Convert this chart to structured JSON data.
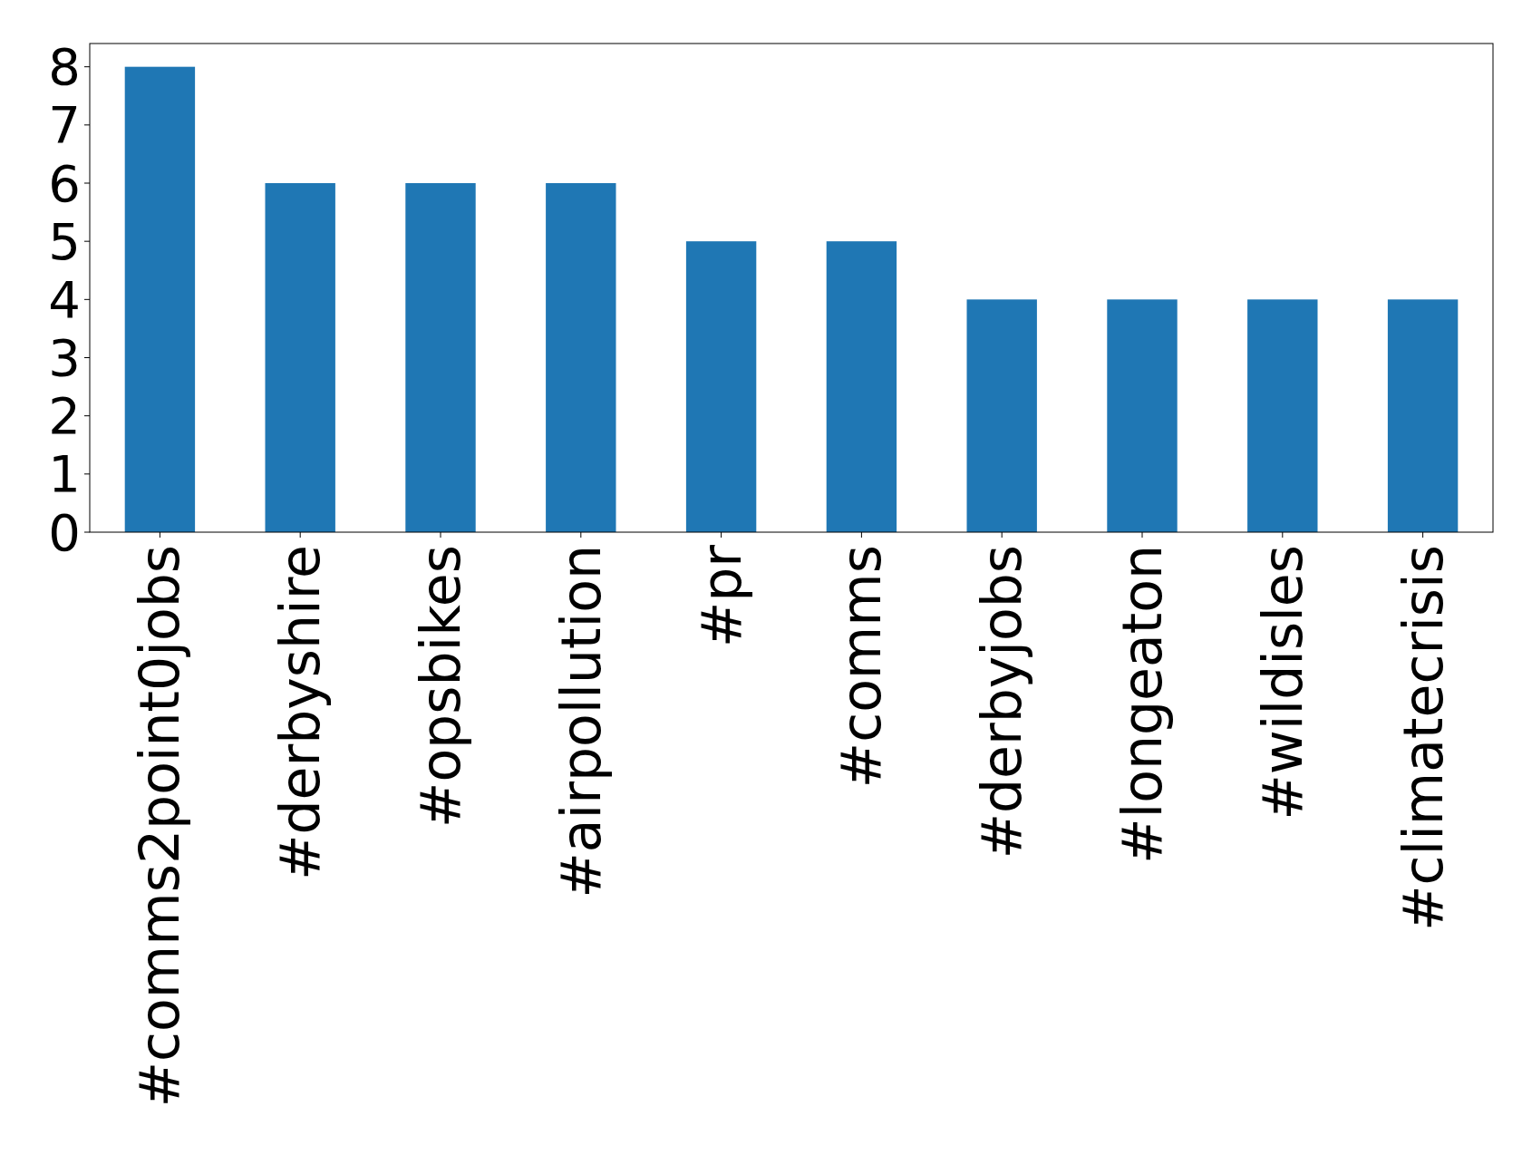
{
  "chart_data": {
    "type": "bar",
    "categories": [
      "#comms2point0jobs",
      "#derbyshire",
      "#opsbikes",
      "#airpollution",
      "#pr",
      "#comms",
      "#derbyjobs",
      "#longeaton",
      "#wildisles",
      "#climatecrisis"
    ],
    "values": [
      8,
      6,
      6,
      6,
      5,
      5,
      4,
      4,
      4,
      4
    ],
    "color": "#1f77b4",
    "ylim": [
      0,
      8.4
    ],
    "yticks": [
      0,
      1,
      2,
      3,
      4,
      5,
      6,
      7,
      8
    ],
    "grid": false
  }
}
